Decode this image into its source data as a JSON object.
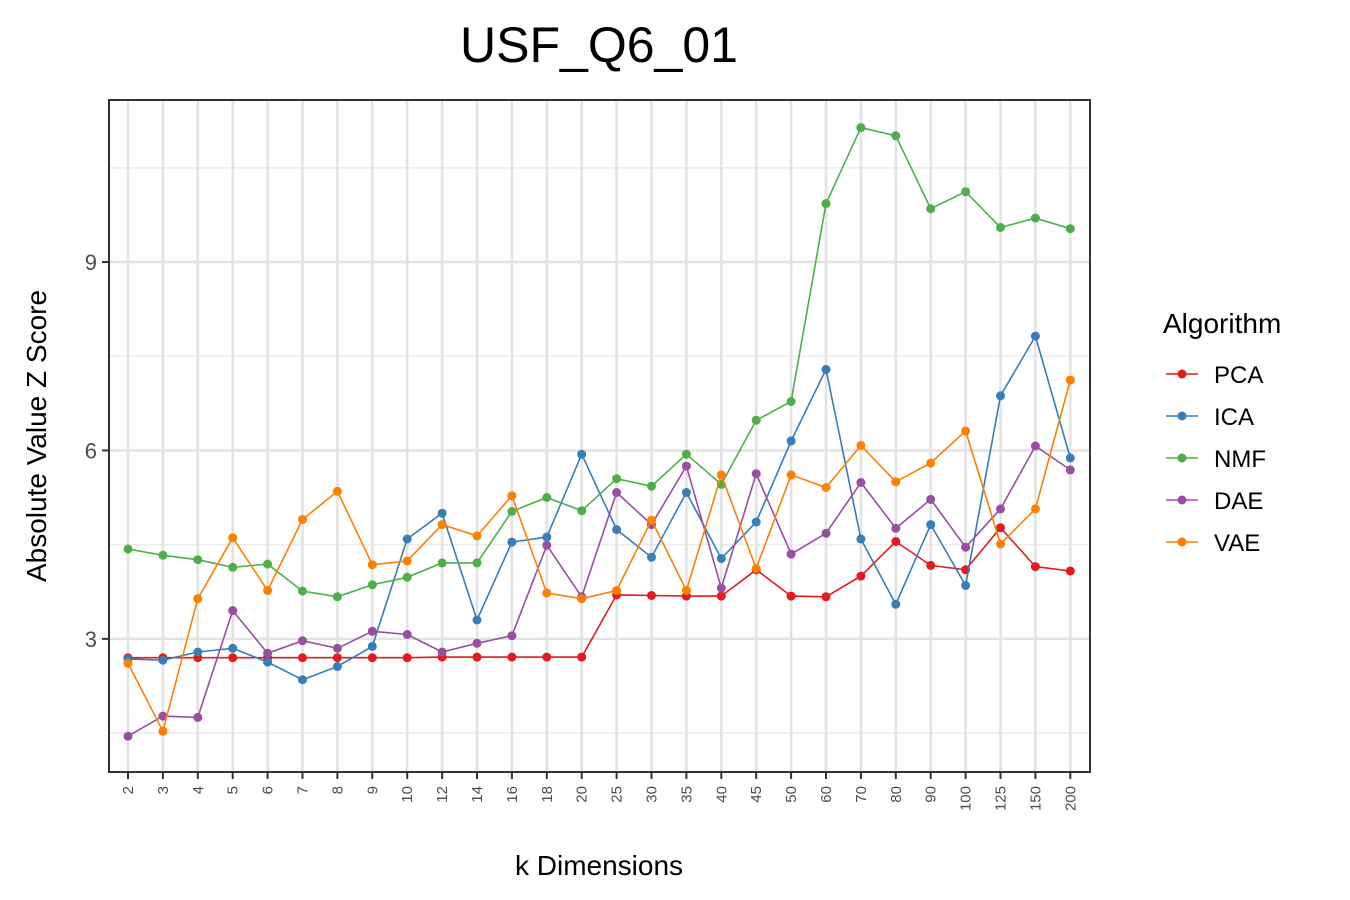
{
  "chart_data": {
    "type": "line",
    "title": "USF_Q6_01",
    "xlabel": "k Dimensions",
    "ylabel": "Absolute Value Z Score",
    "x": [
      "2",
      "3",
      "4",
      "5",
      "6",
      "7",
      "8",
      "9",
      "10",
      "12",
      "14",
      "16",
      "18",
      "20",
      "25",
      "30",
      "35",
      "40",
      "45",
      "50",
      "60",
      "70",
      "80",
      "90",
      "100",
      "125",
      "150",
      "200"
    ],
    "ylim": [
      0.88,
      11.58
    ],
    "yticks": [
      3,
      6,
      9
    ],
    "ytick_labels": [
      "3",
      "6",
      "9"
    ],
    "grid": true,
    "legend": {
      "title": "Algorithm",
      "placement": "right"
    },
    "series": [
      {
        "name": "PCA",
        "color": "#e41a1c",
        "values": [
          2.7,
          2.7,
          2.7,
          2.7,
          2.7,
          2.7,
          2.7,
          2.7,
          2.7,
          2.71,
          2.71,
          2.71,
          2.71,
          2.71,
          3.7,
          3.69,
          3.68,
          3.68,
          4.1,
          3.68,
          3.67,
          4.0,
          4.55,
          4.17,
          4.1,
          4.77,
          4.15,
          4.08
        ]
      },
      {
        "name": "ICA",
        "color": "#377eb8",
        "values": [
          2.68,
          2.66,
          2.79,
          2.85,
          2.63,
          2.35,
          2.56,
          2.88,
          4.59,
          5.0,
          3.3,
          4.54,
          4.62,
          5.94,
          4.74,
          4.3,
          5.33,
          4.28,
          4.86,
          6.15,
          7.29,
          4.59,
          3.55,
          4.82,
          3.85,
          6.87,
          7.82,
          5.88
        ]
      },
      {
        "name": "NMF",
        "color": "#4daf4a",
        "values": [
          4.43,
          4.33,
          4.26,
          4.14,
          4.19,
          3.76,
          3.67,
          3.86,
          3.98,
          4.21,
          4.21,
          5.03,
          5.25,
          5.04,
          5.55,
          5.43,
          5.94,
          5.46,
          6.48,
          6.78,
          9.93,
          11.14,
          11.01,
          9.85,
          10.12,
          9.55,
          9.7,
          9.53
        ]
      },
      {
        "name": "DAE",
        "color": "#984ea3",
        "values": [
          1.45,
          1.77,
          1.75,
          3.45,
          2.77,
          2.97,
          2.85,
          3.12,
          3.07,
          2.79,
          2.93,
          3.05,
          4.49,
          3.67,
          5.33,
          4.82,
          5.75,
          3.81,
          5.63,
          4.35,
          4.68,
          5.49,
          4.76,
          5.22,
          4.46,
          5.07,
          6.07,
          5.69
        ]
      },
      {
        "name": "VAE",
        "color": "#ff7f00",
        "values": [
          2.61,
          1.53,
          3.64,
          4.61,
          3.77,
          4.9,
          5.35,
          4.18,
          4.24,
          4.82,
          4.64,
          5.28,
          3.73,
          3.64,
          3.77,
          4.89,
          3.77,
          5.61,
          4.12,
          5.61,
          5.41,
          6.08,
          5.5,
          5.8,
          6.31,
          4.51,
          5.07,
          7.12
        ]
      }
    ]
  }
}
